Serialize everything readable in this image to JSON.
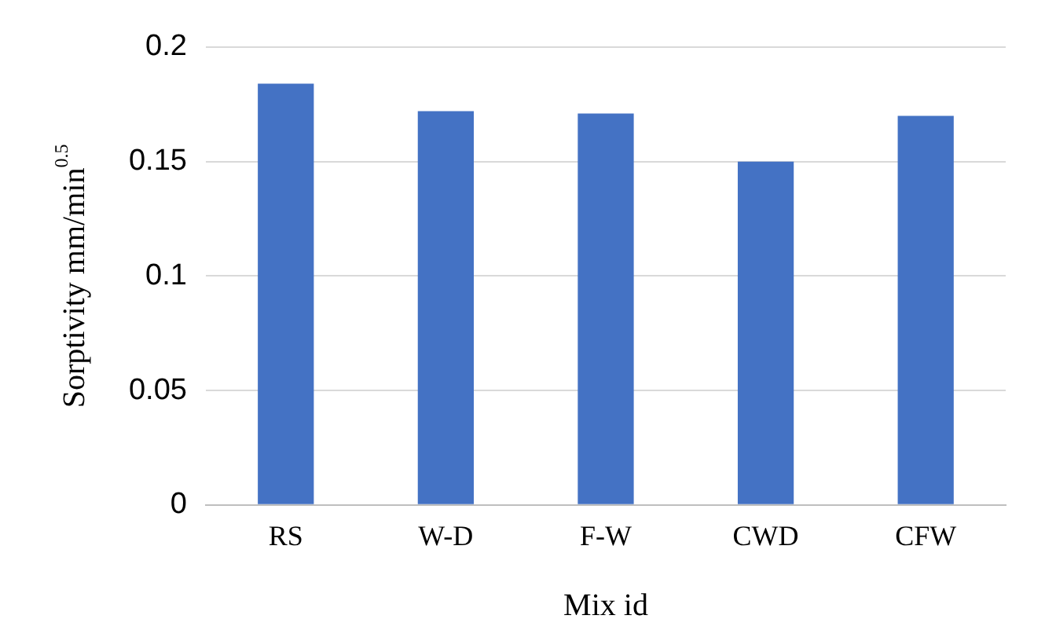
{
  "chart_data": {
    "type": "bar",
    "xlabel": "Mix id",
    "ylabel": "Sorptivity mm/min$^{0.5}$",
    "categories": [
      "RS",
      "W-D",
      "F-W",
      "CWD",
      "CFW"
    ],
    "values": [
      0.184,
      0.172,
      0.171,
      0.15,
      0.17
    ],
    "color": "#4472c4",
    "ylim": [
      0,
      0.2
    ],
    "yticks": [
      0,
      0.05,
      0.1,
      0.15,
      0.2
    ],
    "grid": "y",
    "legend": false
  }
}
